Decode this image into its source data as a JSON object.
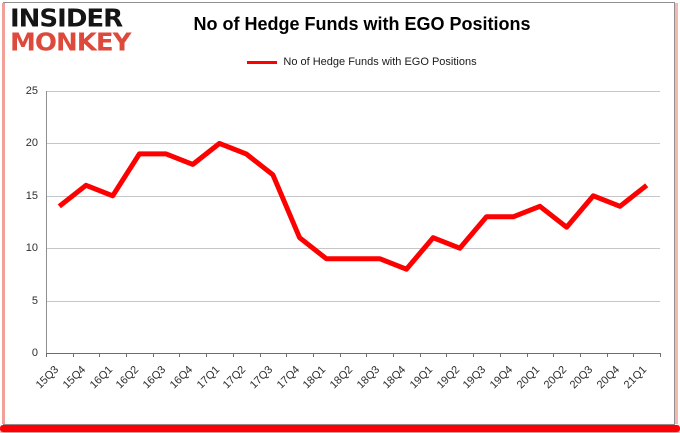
{
  "logo": {
    "line1": "INSIDER",
    "line2": "MONKEY"
  },
  "header": {
    "title": "No of Hedge Funds with EGO Positions"
  },
  "legend": {
    "label": "No of Hedge Funds with EGO Positions"
  },
  "colors": {
    "line_red": "#FF0000",
    "logo_black": "#151515",
    "logo_red": "#DD4A3C",
    "bottom_bar_red": "#FB0006",
    "gridline_gray": "#C6C6C6"
  },
  "chart_data": {
    "type": "line",
    "title": "No of Hedge Funds with EGO Positions",
    "series_name": "No of Hedge Funds with EGO Positions",
    "categories": [
      "15Q3",
      "15Q4",
      "16Q1",
      "16Q2",
      "16Q3",
      "16Q4",
      "17Q1",
      "17Q2",
      "17Q3",
      "17Q4",
      "18Q1",
      "18Q2",
      "18Q3",
      "18Q4",
      "19Q1",
      "19Q2",
      "19Q3",
      "19Q4",
      "20Q1",
      "20Q2",
      "20Q3",
      "20Q4",
      "21Q1"
    ],
    "values": [
      14,
      16,
      15,
      19,
      19,
      18,
      20,
      19,
      17,
      11,
      9,
      9,
      9,
      8,
      11,
      10,
      13,
      13,
      14,
      12,
      15,
      14,
      16
    ],
    "xlabel": "",
    "ylabel": "",
    "ylim": [
      0,
      25
    ],
    "yticks": [
      0,
      5,
      10,
      15,
      20,
      25
    ],
    "grid": true,
    "legend_position": "top",
    "line_color": "#FF0000"
  }
}
